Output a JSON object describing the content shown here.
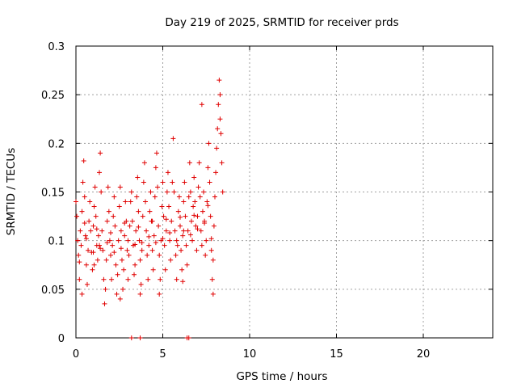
{
  "chart_data": {
    "type": "scatter",
    "title": "Day 219 of 2025, SRMTID for receiver prds",
    "xlabel": "GPS time / hours",
    "ylabel": "SRMTID / TECUs",
    "xlim": [
      0,
      24
    ],
    "ylim": [
      0,
      0.3
    ],
    "xticks": [
      0,
      5,
      10,
      15,
      20
    ],
    "xtick_labels": [
      "0",
      "5",
      "10",
      "15",
      "20"
    ],
    "yticks": [
      0,
      0.05,
      0.1,
      0.15,
      0.2,
      0.25,
      0.3
    ],
    "ytick_labels": [
      "0",
      "0.05",
      "0.1",
      "0.15",
      "0.2",
      "0.25",
      "0.3"
    ],
    "grid": true,
    "marker": "+",
    "series": [
      {
        "name": "prds",
        "color": "#e00000",
        "points": [
          [
            0.0,
            0.14
          ],
          [
            0.05,
            0.125
          ],
          [
            0.1,
            0.1
          ],
          [
            0.15,
            0.085
          ],
          [
            0.2,
            0.06
          ],
          [
            0.25,
            0.11
          ],
          [
            0.3,
            0.095
          ],
          [
            0.35,
            0.13
          ],
          [
            0.4,
            0.16
          ],
          [
            0.45,
            0.182
          ],
          [
            0.5,
            0.145
          ],
          [
            0.55,
            0.105
          ],
          [
            0.6,
            0.075
          ],
          [
            0.65,
            0.055
          ],
          [
            0.7,
            0.09
          ],
          [
            0.75,
            0.12
          ],
          [
            0.8,
            0.14
          ],
          [
            0.85,
            0.11
          ],
          [
            0.9,
            0.088
          ],
          [
            0.95,
            0.07
          ],
          [
            1.0,
            0.115
          ],
          [
            1.05,
            0.135
          ],
          [
            1.1,
            0.155
          ],
          [
            1.15,
            0.125
          ],
          [
            1.2,
            0.095
          ],
          [
            1.25,
            0.08
          ],
          [
            1.3,
            0.105
          ],
          [
            1.35,
            0.17
          ],
          [
            1.4,
            0.19
          ],
          [
            1.45,
            0.15
          ],
          [
            1.5,
            0.11
          ],
          [
            1.55,
            0.09
          ],
          [
            1.6,
            0.06
          ],
          [
            1.65,
            0.035
          ],
          [
            1.7,
            0.05
          ],
          [
            1.75,
            0.08
          ],
          [
            1.8,
            0.12
          ],
          [
            1.85,
            0.155
          ],
          [
            1.9,
            0.13
          ],
          [
            1.95,
            0.1
          ],
          [
            2.0,
            0.085
          ],
          [
            2.05,
            0.06
          ],
          [
            2.1,
            0.095
          ],
          [
            2.15,
            0.125
          ],
          [
            2.2,
            0.145
          ],
          [
            2.25,
            0.115
          ],
          [
            2.3,
            0.075
          ],
          [
            2.35,
            0.045
          ],
          [
            2.4,
            0.065
          ],
          [
            2.45,
            0.1
          ],
          [
            2.5,
            0.135
          ],
          [
            2.55,
            0.155
          ],
          [
            2.6,
            0.11
          ],
          [
            2.65,
            0.08
          ],
          [
            2.7,
            0.05
          ],
          [
            2.75,
            0.07
          ],
          [
            2.8,
            0.105
          ],
          [
            2.85,
            0.14
          ],
          [
            2.9,
            0.12
          ],
          [
            2.95,
            0.09
          ],
          [
            3.0,
            0.06
          ],
          [
            3.05,
            0.085
          ],
          [
            3.1,
            0.115
          ],
          [
            3.15,
            0.14
          ],
          [
            3.2,
            0.15
          ],
          [
            3.25,
            0.12
          ],
          [
            3.3,
            0.095
          ],
          [
            3.35,
            0.065
          ],
          [
            3.4,
            0.075
          ],
          [
            3.45,
            0.11
          ],
          [
            3.5,
            0.145
          ],
          [
            3.55,
            0.165
          ],
          [
            3.6,
            0.13
          ],
          [
            3.65,
            0.1
          ],
          [
            3.7,
            0.08
          ],
          [
            3.75,
            0.055
          ],
          [
            3.8,
            0.09
          ],
          [
            3.85,
            0.125
          ],
          [
            3.9,
            0.16
          ],
          [
            3.95,
            0.18
          ],
          [
            4.0,
            0.14
          ],
          [
            4.05,
            0.11
          ],
          [
            4.1,
            0.085
          ],
          [
            4.15,
            0.06
          ],
          [
            4.2,
            0.095
          ],
          [
            4.25,
            0.13
          ],
          [
            4.3,
            0.15
          ],
          [
            4.35,
            0.12
          ],
          [
            4.4,
            0.09
          ],
          [
            4.45,
            0.07
          ],
          [
            4.5,
            0.105
          ],
          [
            4.55,
            0.145
          ],
          [
            4.6,
            0.175
          ],
          [
            4.65,
            0.19
          ],
          [
            4.7,
            0.155
          ],
          [
            4.75,
            0.115
          ],
          [
            4.8,
            0.085
          ],
          [
            4.85,
            0.06
          ],
          [
            4.9,
            0.1
          ],
          [
            4.95,
            0.135
          ],
          [
            5.0,
            0.16
          ],
          [
            5.05,
            0.125
          ],
          [
            5.1,
            0.095
          ],
          [
            5.15,
            0.07
          ],
          [
            5.2,
            0.11
          ],
          [
            5.25,
            0.15
          ],
          [
            5.3,
            0.17
          ],
          [
            5.35,
            0.135
          ],
          [
            5.4,
            0.1
          ],
          [
            5.45,
            0.08
          ],
          [
            5.5,
            0.12
          ],
          [
            5.55,
            0.16
          ],
          [
            5.6,
            0.205
          ],
          [
            5.65,
            0.15
          ],
          [
            5.7,
            0.11
          ],
          [
            5.75,
            0.085
          ],
          [
            5.8,
            0.06
          ],
          [
            5.85,
            0.095
          ],
          [
            5.9,
            0.13
          ],
          [
            5.95,
            0.145
          ],
          [
            6.0,
            0.115
          ],
          [
            6.05,
            0.09
          ],
          [
            6.1,
            0.07
          ],
          [
            6.15,
            0.105
          ],
          [
            6.2,
            0.14
          ],
          [
            6.25,
            0.16
          ],
          [
            6.3,
            0.125
          ],
          [
            6.35,
            0.095
          ],
          [
            6.4,
            0.075
          ],
          [
            6.45,
            0.11
          ],
          [
            6.5,
            0.145
          ],
          [
            6.55,
            0.18
          ],
          [
            6.6,
            0.15
          ],
          [
            6.65,
            0.12
          ],
          [
            6.7,
            0.1
          ],
          [
            6.75,
            0.135
          ],
          [
            6.8,
            0.165
          ],
          [
            6.85,
            0.14
          ],
          [
            6.9,
            0.115
          ],
          [
            6.95,
            0.09
          ],
          [
            7.0,
            0.125
          ],
          [
            7.05,
            0.155
          ],
          [
            7.1,
            0.18
          ],
          [
            7.15,
            0.145
          ],
          [
            7.2,
            0.11
          ],
          [
            7.25,
            0.095
          ],
          [
            7.3,
            0.13
          ],
          [
            7.35,
            0.15
          ],
          [
            7.4,
            0.12
          ],
          [
            7.45,
            0.085
          ],
          [
            7.5,
            0.1
          ],
          [
            7.55,
            0.14
          ],
          [
            7.6,
            0.175
          ],
          [
            7.65,
            0.2
          ],
          [
            7.7,
            0.16
          ],
          [
            7.75,
            0.125
          ],
          [
            7.8,
            0.09
          ],
          [
            7.85,
            0.06
          ],
          [
            7.9,
            0.08
          ],
          [
            7.95,
            0.115
          ],
          [
            8.0,
            0.145
          ],
          [
            8.05,
            0.17
          ],
          [
            8.1,
            0.195
          ],
          [
            8.15,
            0.215
          ],
          [
            8.2,
            0.24
          ],
          [
            8.25,
            0.265
          ],
          [
            8.3,
            0.25
          ],
          [
            8.35,
            0.21
          ],
          [
            8.4,
            0.18
          ],
          [
            8.45,
            0.15
          ],
          [
            0.35,
            0.045
          ],
          [
            1.35,
            0.095
          ],
          [
            2.55,
            0.04
          ],
          [
            3.7,
            0.045
          ],
          [
            4.8,
            0.045
          ],
          [
            6.15,
            0.058
          ],
          [
            7.25,
            0.24
          ],
          [
            7.9,
            0.045
          ],
          [
            8.3,
            0.225
          ],
          [
            1.05,
            0.075
          ],
          [
            0.2,
            0.078
          ],
          [
            0.6,
            0.102
          ],
          [
            1.0,
            0.088
          ],
          [
            1.4,
            0.092
          ],
          [
            1.8,
            0.098
          ],
          [
            2.2,
            0.088
          ],
          [
            2.6,
            0.092
          ],
          [
            3.0,
            0.1
          ],
          [
            3.4,
            0.096
          ],
          [
            3.8,
            0.098
          ],
          [
            4.2,
            0.104
          ],
          [
            4.6,
            0.098
          ],
          [
            5.0,
            0.102
          ],
          [
            5.4,
            0.108
          ],
          [
            5.8,
            0.1
          ],
          [
            6.2,
            0.11
          ],
          [
            6.6,
            0.106
          ],
          [
            7.0,
            0.112
          ],
          [
            7.4,
            0.118
          ],
          [
            7.8,
            0.102
          ],
          [
            0.5,
            0.118
          ],
          [
            1.2,
            0.112
          ],
          [
            2.0,
            0.108
          ],
          [
            2.8,
            0.118
          ],
          [
            3.6,
            0.114
          ],
          [
            4.4,
            0.12
          ],
          [
            5.2,
            0.122
          ],
          [
            6.0,
            0.124
          ],
          [
            6.8,
            0.126
          ],
          [
            7.6,
            0.136
          ],
          [
            3.2,
            0.0
          ],
          [
            3.7,
            0.0
          ],
          [
            6.4,
            0.0
          ],
          [
            6.5,
            0.0
          ]
        ]
      }
    ]
  }
}
